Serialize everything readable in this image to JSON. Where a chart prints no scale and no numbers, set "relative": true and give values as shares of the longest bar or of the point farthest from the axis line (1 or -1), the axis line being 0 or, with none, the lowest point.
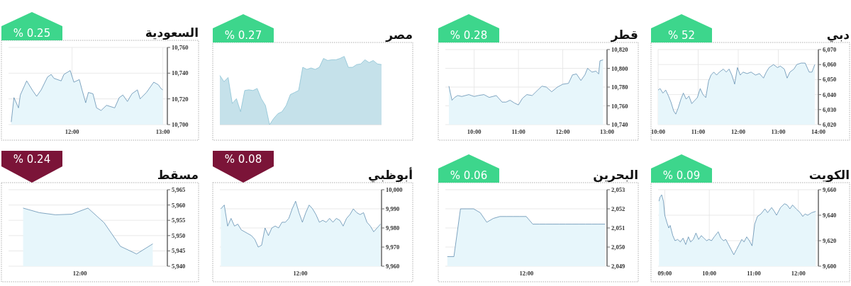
{
  "chart_data": [
    {
      "type": "area",
      "title": "السعودية",
      "subtitle": "% 0.25",
      "color": "#4d7fa6",
      "grid": true,
      "x": [
        11.33,
        11.36,
        11.41,
        11.43,
        11.5,
        11.57,
        11.61,
        11.66,
        11.73,
        11.77,
        11.8,
        11.88,
        11.91,
        11.98,
        12.02,
        12.08,
        12.11,
        12.15,
        12.18,
        12.23,
        12.27,
        12.32,
        12.38,
        12.47,
        12.52,
        12.56,
        12.61,
        12.66,
        12.72,
        12.75,
        12.82,
        12.9,
        12.95,
        12.98,
        13.0
      ],
      "values": [
        10702,
        10721,
        10713,
        10723,
        10734,
        10726,
        10722,
        10727,
        10737,
        10739,
        10736,
        10734,
        10739,
        10742,
        10733,
        10735,
        10727,
        10717,
        10725,
        10724,
        10713,
        10711,
        10715,
        10713,
        10721,
        10723,
        10718,
        10724,
        10727,
        10720,
        10725,
        10733,
        10731,
        10728,
        10727
      ],
      "xlim": [
        11.3,
        13.05
      ],
      "ylim": [
        10700,
        10760
      ],
      "xticks": [
        {
          "value": 12,
          "label": "12:00"
        },
        {
          "value": 13,
          "label": "13:00"
        }
      ],
      "yticks": [
        {
          "value": 10700,
          "label": "10,700"
        },
        {
          "value": 10720,
          "label": "10,720"
        },
        {
          "value": 10740,
          "label": "10,740"
        },
        {
          "value": 10760,
          "label": "10,760"
        }
      ]
    },
    {
      "type": "area",
      "title": "مصر",
      "subtitle": "% 0.27",
      "color": "#7fbcd0",
      "relative": true,
      "categories": [
        null,
        null,
        null,
        null,
        null,
        null,
        null,
        null,
        null,
        null,
        null,
        null,
        null,
        null,
        null,
        null,
        null,
        null,
        null,
        null,
        null,
        null,
        null,
        null,
        null,
        null,
        null,
        null,
        null,
        null,
        null,
        null,
        null,
        null,
        null,
        null,
        null,
        null,
        null,
        null
      ],
      "values": [
        0.72,
        0.63,
        0.69,
        0.31,
        0.38,
        0.19,
        0.5,
        0.51,
        0.5,
        0.53,
        0.38,
        0.28,
        0,
        0.09,
        0.16,
        0.19,
        0.28,
        0.44,
        0.47,
        0.5,
        0.84,
        0.81,
        0.83,
        0.81,
        0.84,
        0.97,
        0.94,
        0.95,
        0.95,
        0.97,
        1,
        0.84,
        0.84,
        0.88,
        0.89,
        0.95,
        0.91,
        0.94,
        0.89,
        0.88
      ]
    },
    {
      "type": "area",
      "title": "قطر",
      "subtitle": "% 0.28",
      "color": "#4d7fa6",
      "grid": true,
      "x": [
        9.43,
        9.5,
        9.56,
        9.63,
        9.72,
        9.88,
        10,
        10.09,
        10.22,
        10.34,
        10.5,
        10.63,
        10.72,
        10.81,
        10.91,
        11,
        11.09,
        11.19,
        11.31,
        11.44,
        11.53,
        11.63,
        11.75,
        11.88,
        12,
        12.13,
        12.22,
        12.31,
        12.41,
        12.5,
        12.56,
        12.66,
        12.75,
        12.81,
        12.84,
        12.91
      ],
      "values": [
        10781,
        10766,
        10769,
        10771,
        10770,
        10772,
        10770,
        10771,
        10772,
        10769,
        10771,
        10764,
        10764,
        10766,
        10763,
        10761,
        10768,
        10772,
        10771,
        10777,
        10781,
        10780,
        10775,
        10780,
        10783,
        10784,
        10793,
        10794,
        10787,
        10793,
        10800,
        10796,
        10797,
        10794,
        10808,
        10809
      ],
      "xlim": [
        9.35,
        13.0
      ],
      "ylim": [
        10740,
        10820
      ],
      "xticks": [
        {
          "value": 10,
          "label": "10:00"
        },
        {
          "value": 11,
          "label": "11:00"
        },
        {
          "value": 12,
          "label": "12:00"
        },
        {
          "value": 13,
          "label": "13:00"
        }
      ],
      "yticks": [
        {
          "value": 10740,
          "label": "10,740"
        },
        {
          "value": 10760,
          "label": "10,760"
        },
        {
          "value": 10780,
          "label": "10,780"
        },
        {
          "value": 10800,
          "label": "10,800"
        },
        {
          "value": 10820,
          "label": "10,820"
        }
      ]
    },
    {
      "type": "area",
      "title": "دبي",
      "subtitle": "% 52",
      "color": "#4d7fa6",
      "grid": true,
      "x": [
        10,
        10.05,
        10.12,
        10.19,
        10.26,
        10.32,
        10.39,
        10.44,
        10.5,
        10.57,
        10.63,
        10.7,
        10.77,
        10.84,
        10.91,
        10.98,
        11.05,
        11.12,
        11.19,
        11.26,
        11.32,
        11.39,
        11.46,
        11.53,
        11.63,
        11.7,
        11.77,
        11.84,
        11.91,
        11.98,
        12.05,
        12.12,
        12.22,
        12.32,
        12.43,
        12.53,
        12.63,
        12.7,
        12.77,
        12.88,
        12.98,
        13.05,
        13.15,
        13.22,
        13.29,
        13.39,
        13.46,
        13.57,
        13.67,
        13.77,
        13.84,
        13.91
      ],
      "values": [
        6043,
        6044,
        6041,
        6043,
        6039,
        6035,
        6029,
        6027,
        6031,
        6037,
        6041,
        6037,
        6039,
        6034,
        6036,
        6038,
        6044,
        6040,
        6038,
        6049,
        6053,
        6055,
        6053,
        6055,
        6057,
        6055,
        6057,
        6053,
        6047,
        6058,
        6053,
        6055,
        6054,
        6055,
        6053,
        6054,
        6051,
        6055,
        6058,
        6060,
        6058,
        6059,
        6057,
        6051,
        6055,
        6057,
        6060,
        6061,
        6061,
        6055,
        6055,
        6060
      ],
      "xlim": [
        10,
        14
      ],
      "ylim": [
        6020,
        6070
      ],
      "xticks": [
        {
          "value": 10,
          "label": "10:00"
        },
        {
          "value": 11,
          "label": "11:00"
        },
        {
          "value": 12,
          "label": "12:00"
        },
        {
          "value": 13,
          "label": "13:00"
        },
        {
          "value": 14,
          "label": "14:00"
        }
      ],
      "yticks": [
        {
          "value": 6020,
          "label": "6,020"
        },
        {
          "value": 6030,
          "label": "6,030"
        },
        {
          "value": 6040,
          "label": "6,040"
        },
        {
          "value": 6050,
          "label": "6,050"
        },
        {
          "value": 6060,
          "label": "6,060"
        },
        {
          "value": 6070,
          "label": "6,070"
        }
      ]
    },
    {
      "type": "area",
      "title": "مسقط",
      "subtitle": "% 0.24",
      "color": "#4d7fa6",
      "grid": true,
      "categories": [
        null,
        null,
        null,
        null,
        null,
        null,
        null,
        null,
        null
      ],
      "annotations": [
        "12:00"
      ],
      "values": [
        5959,
        5957.5,
        5956.8,
        5957,
        5959,
        5954.2,
        5946.5,
        5944,
        5947.3
      ],
      "ylim": [
        5940,
        5965
      ],
      "yticks": [
        {
          "value": 5940,
          "label": "5,940"
        },
        {
          "value": 5945,
          "label": "5,945"
        },
        {
          "value": 5950,
          "label": "5,950"
        },
        {
          "value": 5955,
          "label": "5,955"
        },
        {
          "value": 5960,
          "label": "5,960"
        },
        {
          "value": 5965,
          "label": "5,965"
        }
      ]
    },
    {
      "type": "area",
      "title": "أبوظبي",
      "subtitle": "% 0.08",
      "color": "#4d7fa6",
      "grid": true,
      "categories": [
        null,
        null,
        null,
        null,
        null,
        null,
        null,
        null,
        null,
        null,
        null,
        null,
        null,
        null,
        null,
        null,
        null,
        null,
        null,
        null,
        null,
        null,
        null,
        null,
        null,
        null,
        null,
        null,
        null,
        null,
        null,
        null,
        null,
        null,
        null,
        null,
        null,
        null,
        null,
        null,
        null,
        null,
        null,
        null,
        null,
        null,
        null,
        null
      ],
      "annotations": [
        "12:00"
      ],
      "values": [
        9990,
        9992,
        9981,
        9985,
        9981,
        9982,
        9979,
        9978,
        9977,
        9976,
        9974,
        9970,
        9971,
        9980,
        9976,
        9980,
        9981,
        9980,
        9983,
        9983,
        9985,
        9990,
        9994,
        9988,
        9983,
        9988,
        9992,
        9990,
        9987,
        9983,
        9984,
        9983,
        9985,
        9983,
        9985,
        9984,
        9981,
        9985,
        9987,
        9990,
        9988,
        9987,
        9988,
        9983,
        9981,
        9978,
        9980,
        9982
      ],
      "ylim": [
        9960,
        10000
      ],
      "yticks": [
        {
          "value": 9960,
          "label": "9,960"
        },
        {
          "value": 9970,
          "label": "9,970"
        },
        {
          "value": 9980,
          "label": "9,980"
        },
        {
          "value": 9990,
          "label": "9,990"
        },
        {
          "value": 10000,
          "label": "10,000"
        }
      ]
    },
    {
      "type": "area",
      "title": "البحرين",
      "subtitle": "% 0.06",
      "color": "#4d7fa6",
      "grid": true,
      "categories": [
        null,
        null,
        null,
        null,
        null,
        null,
        null,
        null,
        null,
        null,
        null,
        null,
        null,
        null,
        null,
        null,
        null,
        null,
        null,
        null,
        null,
        null,
        null,
        null,
        null
      ],
      "annotations": [
        "12:00"
      ],
      "values": [
        2049.5,
        2049.5,
        2052,
        2052,
        2052,
        2051.8,
        2051.3,
        2051.5,
        2051.6,
        2051.6,
        2051.6,
        2051.6,
        2051.6,
        2051.2,
        2051.2,
        2051.2,
        2051.2,
        2051.2,
        2051.2,
        2051.2,
        2051.2,
        2051.2,
        2051.2,
        2051.2,
        2051.2
      ],
      "ylim": [
        2049,
        2053
      ],
      "yticks": [
        {
          "value": 2049,
          "label": "2,049"
        },
        {
          "value": 2050,
          "label": "2,050"
        },
        {
          "value": 2051,
          "label": "2,051"
        },
        {
          "value": 2052,
          "label": "2,052"
        },
        {
          "value": 2053,
          "label": "2,053"
        }
      ]
    },
    {
      "type": "area",
      "title": "الكويت",
      "subtitle": "% 0.09",
      "color": "#4d7fa6",
      "grid": true,
      "x": [
        8.87,
        8.89,
        8.93,
        8.97,
        9,
        9.05,
        9.09,
        9.12,
        9.18,
        9.23,
        9.29,
        9.35,
        9.41,
        9.47,
        9.53,
        9.58,
        9.64,
        9.7,
        9.76,
        9.82,
        9.88,
        9.94,
        9.99,
        10.05,
        10.11,
        10.2,
        10.26,
        10.32,
        10.37,
        10.43,
        10.49,
        10.55,
        10.61,
        10.67,
        10.73,
        10.78,
        10.84,
        10.9,
        10.96,
        11.02,
        11.08,
        11.16,
        11.25,
        11.31,
        11.4,
        11.46,
        11.51,
        11.6,
        11.69,
        11.75,
        11.81,
        11.87,
        11.95,
        12.04,
        12.1,
        12.15,
        12.21,
        12.3,
        12.39
      ],
      "values": [
        9651,
        9654,
        9656,
        9651,
        9640,
        9634,
        9630,
        9632,
        9624,
        9620,
        9621,
        9619,
        9622,
        9617,
        9623,
        9619,
        9621,
        9626,
        9621,
        9624,
        9622,
        9620,
        9621,
        9620,
        9623,
        9627,
        9622,
        9620,
        9621,
        9617,
        9613,
        9609,
        9613,
        9617,
        9621,
        9619,
        9623,
        9620,
        9616,
        9633,
        9639,
        9641,
        9645,
        9642,
        9646,
        9643,
        9640,
        9646,
        9649,
        9648,
        9645,
        9648,
        9645,
        9642,
        9639,
        9641,
        9640,
        9642,
        9643
      ],
      "xlim": [
        8.85,
        12.45
      ],
      "ylim": [
        9600,
        9660
      ],
      "xticks": [
        {
          "value": 9,
          "label": "09:00"
        },
        {
          "value": 10,
          "label": "10:00"
        },
        {
          "value": 11,
          "label": "11:00"
        },
        {
          "value": 12,
          "label": "12:00"
        }
      ],
      "yticks": [
        {
          "value": 9600,
          "label": "9,600"
        },
        {
          "value": 9620,
          "label": "9,620"
        },
        {
          "value": 9640,
          "label": "9,640"
        },
        {
          "value": 9660,
          "label": "9,660"
        }
      ]
    }
  ]
}
